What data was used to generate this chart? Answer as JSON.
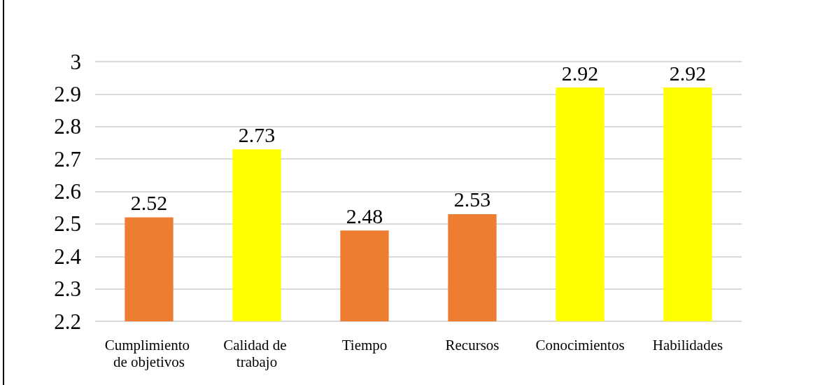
{
  "chart_data": {
    "type": "bar",
    "categories": [
      "Cumplimiento de objetivos",
      "Calidad de trabajo",
      "Tiempo",
      "Recursos",
      "Conocimientos",
      "Habilidades"
    ],
    "values": [
      2.52,
      2.73,
      2.48,
      2.53,
      2.92,
      2.92
    ],
    "colors": [
      "#ed7d31",
      "#ffff00",
      "#ed7d31",
      "#ed7d31",
      "#ffff00",
      "#ffff00"
    ],
    "ylim": [
      2.2,
      3
    ],
    "yticks": [
      2.2,
      2.3,
      2.4,
      2.5,
      2.6,
      2.7,
      2.8,
      2.9,
      3
    ],
    "grid": "y",
    "data_labels": true
  }
}
